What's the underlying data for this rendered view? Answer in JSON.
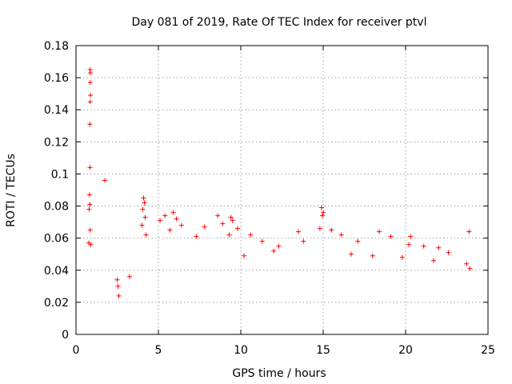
{
  "chart_data": {
    "type": "scatter",
    "title": "Day 081 of 2019, Rate Of TEC Index for receiver ptvl",
    "xlabel": "GPS time / hours",
    "ylabel": "ROTI / TECUs",
    "xlim": [
      0,
      25
    ],
    "ylim": [
      0,
      0.18
    ],
    "x_ticks": [
      0,
      5,
      10,
      15,
      20,
      25
    ],
    "x_tick_labels": [
      "0",
      "5",
      "10",
      "15",
      "20",
      "25"
    ],
    "y_ticks": [
      0,
      0.02,
      0.04,
      0.06,
      0.08,
      0.1,
      0.12,
      0.14,
      0.16,
      0.18
    ],
    "y_tick_labels": [
      "0",
      "0.02",
      "0.04",
      "0.06",
      "0.08",
      "0.1",
      "0.12",
      "0.14",
      "0.16",
      "0.18"
    ],
    "grid": true,
    "marker": "+",
    "color": "#ff0000",
    "series": [
      {
        "name": "ROTI",
        "points": [
          [
            0.85,
            0.165
          ],
          [
            0.87,
            0.163
          ],
          [
            0.86,
            0.157
          ],
          [
            0.88,
            0.149
          ],
          [
            0.86,
            0.145
          ],
          [
            0.84,
            0.131
          ],
          [
            0.85,
            0.104
          ],
          [
            1.75,
            0.096
          ],
          [
            0.82,
            0.087
          ],
          [
            0.84,
            0.081
          ],
          [
            0.8,
            0.078
          ],
          [
            0.86,
            0.065
          ],
          [
            0.78,
            0.057
          ],
          [
            0.9,
            0.056
          ],
          [
            4.1,
            0.085
          ],
          [
            4.15,
            0.082
          ],
          [
            4.05,
            0.078
          ],
          [
            4.2,
            0.073
          ],
          [
            4.0,
            0.068
          ],
          [
            4.25,
            0.062
          ],
          [
            5.1,
            0.071
          ],
          [
            5.4,
            0.074
          ],
          [
            5.9,
            0.076
          ],
          [
            6.1,
            0.072
          ],
          [
            6.4,
            0.068
          ],
          [
            5.7,
            0.065
          ],
          [
            7.3,
            0.061
          ],
          [
            7.8,
            0.067
          ],
          [
            8.6,
            0.074
          ],
          [
            8.9,
            0.069
          ],
          [
            9.4,
            0.073
          ],
          [
            9.5,
            0.071
          ],
          [
            9.8,
            0.066
          ],
          [
            9.3,
            0.062
          ],
          [
            10.6,
            0.062
          ],
          [
            11.3,
            0.058
          ],
          [
            12.3,
            0.055
          ],
          [
            13.5,
            0.064
          ],
          [
            13.8,
            0.058
          ],
          [
            14.9,
            0.079
          ],
          [
            15.0,
            0.076
          ],
          [
            14.95,
            0.074
          ],
          [
            14.8,
            0.066
          ],
          [
            15.5,
            0.065
          ],
          [
            16.1,
            0.062
          ],
          [
            17.1,
            0.058
          ],
          [
            18.4,
            0.064
          ],
          [
            19.1,
            0.061
          ],
          [
            20.3,
            0.061
          ],
          [
            20.2,
            0.056
          ],
          [
            21.1,
            0.055
          ],
          [
            22.0,
            0.054
          ],
          [
            22.6,
            0.051
          ],
          [
            23.85,
            0.064
          ],
          [
            23.7,
            0.044
          ],
          [
            23.9,
            0.041
          ],
          [
            2.5,
            0.034
          ],
          [
            2.55,
            0.03
          ],
          [
            3.25,
            0.036
          ],
          [
            2.6,
            0.024
          ],
          [
            12.0,
            0.052
          ],
          [
            16.7,
            0.05
          ],
          [
            18.0,
            0.049
          ],
          [
            21.7,
            0.046
          ],
          [
            19.8,
            0.048
          ],
          [
            10.2,
            0.049
          ]
        ]
      }
    ]
  }
}
